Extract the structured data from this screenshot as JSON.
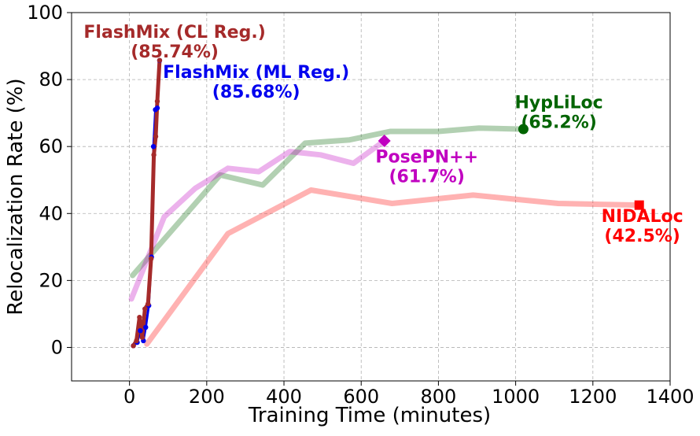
{
  "chart_data": {
    "type": "line",
    "title": "",
    "xlabel": "Training Time (minutes)",
    "ylabel": "Relocalization Rate (%)",
    "xlim": [
      -150,
      1400
    ],
    "ylim": [
      -10,
      100
    ],
    "xticks": [
      0,
      200,
      400,
      600,
      800,
      1000,
      1200,
      1400
    ],
    "yticks": [
      0,
      20,
      40,
      60,
      80,
      100
    ],
    "grid": true,
    "legend": "none",
    "series": [
      {
        "color": "#ff0000",
        "alpha": 0.3,
        "width": 7,
        "end_marker": "square",
        "x": [
          45,
          255,
          470,
          680,
          890,
          1110,
          1320
        ],
        "y": [
          1,
          34,
          47,
          43,
          45.5,
          43,
          42.5
        ]
      },
      {
        "color": "#006400",
        "alpha": 0.3,
        "width": 7,
        "end_marker": "circle",
        "x": [
          8,
          235,
          345,
          455,
          570,
          675,
          800,
          905,
          1020
        ],
        "y": [
          21.5,
          51.5,
          48.5,
          61,
          62,
          64.5,
          64.5,
          65.5,
          65.2
        ]
      },
      {
        "color": "#c000c0",
        "alpha": 0.3,
        "width": 7,
        "end_marker": "diamond",
        "x": [
          5,
          90,
          170,
          255,
          335,
          415,
          495,
          580,
          660
        ],
        "y": [
          14.5,
          39,
          47.5,
          53.5,
          52.5,
          58.5,
          57.5,
          55,
          61.7
        ]
      },
      {
        "color": "#0000ee",
        "alpha": 1,
        "width": 3,
        "end_marker": "dots",
        "x": [
          10,
          20,
          28,
          36,
          42,
          50,
          57,
          62,
          67,
          72,
          78
        ],
        "y": [
          0.5,
          1.5,
          5,
          2,
          6,
          12.5,
          27,
          60,
          71,
          71.5,
          85.68
        ]
      },
      {
        "color": "#a52a2a",
        "alpha": 1,
        "width": 5,
        "end_marker": "dots",
        "x": [
          10,
          18,
          26,
          33,
          40,
          48,
          56,
          63,
          68,
          72,
          78
        ],
        "y": [
          0.5,
          2,
          9,
          3,
          11.5,
          13,
          26.5,
          57.5,
          63,
          73.5,
          85.74
        ]
      }
    ],
    "annotations": [
      {
        "lines": [
          "NIDALoc",
          "(42.5%)"
        ],
        "color": "#ff0000",
        "x": 1328,
        "y": 37.5
      },
      {
        "lines": [
          "HypLiLoc",
          "(65.2%)"
        ],
        "color": "#006400",
        "x": 1112,
        "y": 71.5
      },
      {
        "lines": [
          "PosePN++",
          "(61.7%)"
        ],
        "color": "#c000c0",
        "x": 770,
        "y": 55.2
      },
      {
        "lines": [
          "FlashMix (ML Reg.)",
          "(85.68%)"
        ],
        "color": "#0000ee",
        "x": 328,
        "y": 80.5
      },
      {
        "lines": [
          "FlashMix (CL Reg.)",
          "(85.74%)"
        ],
        "color": "#a52a2a",
        "x": 117,
        "y": 92.5
      }
    ]
  }
}
